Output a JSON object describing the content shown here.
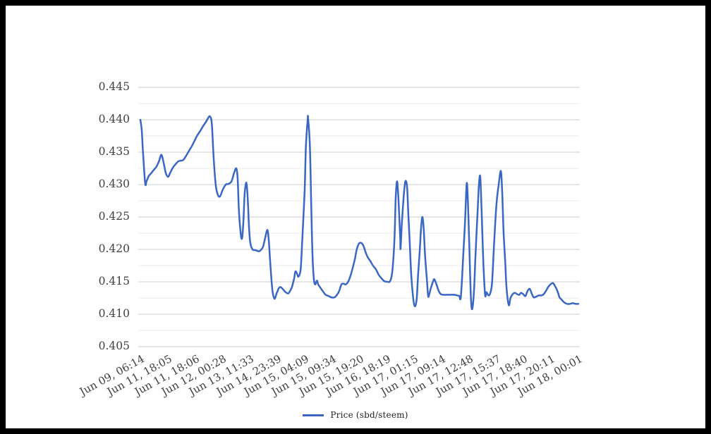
{
  "frame": {
    "border_color": "#000000",
    "background": "#ffffff"
  },
  "legend": {
    "label": "Price (sbd/steem)"
  },
  "chart_data": {
    "type": "line",
    "title": "",
    "xlabel": "",
    "ylabel": "",
    "grid": "horizontal-only",
    "legend_position": "bottom-center",
    "colors": {
      "line": "#3a66c4",
      "major_grid": "#cccccc",
      "minor_grid": "#ebebeb",
      "axis_text": "#404040",
      "legend_text": "#1f1f1f"
    },
    "y_axis": {
      "min": 0.405,
      "max": 0.445,
      "major_step": 0.005,
      "minor_step": 0.0025,
      "tick_labels": [
        "0.445",
        "0.440",
        "0.435",
        "0.430",
        "0.425",
        "0.420",
        "0.415",
        "0.410",
        "0.405"
      ],
      "tick_values": [
        0.445,
        0.44,
        0.435,
        0.43,
        0.425,
        0.42,
        0.415,
        0.41,
        0.405
      ]
    },
    "x_axis": {
      "tick_labels": [
        "Jun 09, 06:14",
        "Jun 11, 18:05",
        "Jun 11, 18:06",
        "Jun 12, 00:28",
        "Jun 13, 11:33",
        "Jun 14, 23:39",
        "Jun 15, 04:09",
        "Jun 15, 09:34",
        "Jun 15, 19:20",
        "Jun 16, 18:19",
        "Jun 17, 01:15",
        "Jun 17, 09:14",
        "Jun 17, 12:48",
        "Jun 17, 15:37",
        "Jun 17, 18:40",
        "Jun 17, 20:11",
        "Jun 18, 00:01"
      ]
    },
    "series": [
      {
        "name": "Price (sbd/steem)",
        "color": "#3a66c4",
        "x_unit": "fraction-of-axis (0 = Jun 09 06:14, 1 = Jun 18 00:01)",
        "points": [
          [
            0.0,
            0.44
          ],
          [
            0.003,
            0.4385
          ],
          [
            0.006,
            0.435
          ],
          [
            0.011,
            0.4302
          ],
          [
            0.014,
            0.4305
          ],
          [
            0.019,
            0.4313
          ],
          [
            0.024,
            0.4317
          ],
          [
            0.031,
            0.4323
          ],
          [
            0.037,
            0.4328
          ],
          [
            0.043,
            0.4337
          ],
          [
            0.048,
            0.4346
          ],
          [
            0.053,
            0.4334
          ],
          [
            0.058,
            0.4318
          ],
          [
            0.063,
            0.4312
          ],
          [
            0.068,
            0.4318
          ],
          [
            0.074,
            0.4326
          ],
          [
            0.081,
            0.4332
          ],
          [
            0.087,
            0.4336
          ],
          [
            0.093,
            0.4337
          ],
          [
            0.098,
            0.4338
          ],
          [
            0.105,
            0.4345
          ],
          [
            0.111,
            0.4352
          ],
          [
            0.118,
            0.436
          ],
          [
            0.124,
            0.4368
          ],
          [
            0.13,
            0.4376
          ],
          [
            0.137,
            0.4383
          ],
          [
            0.143,
            0.439
          ],
          [
            0.15,
            0.4397
          ],
          [
            0.156,
            0.4404
          ],
          [
            0.159,
            0.4405
          ],
          [
            0.163,
            0.4395
          ],
          [
            0.167,
            0.4345
          ],
          [
            0.172,
            0.43
          ],
          [
            0.177,
            0.4284
          ],
          [
            0.182,
            0.4282
          ],
          [
            0.188,
            0.4292
          ],
          [
            0.195,
            0.43
          ],
          [
            0.201,
            0.4301
          ],
          [
            0.208,
            0.4305
          ],
          [
            0.214,
            0.4318
          ],
          [
            0.219,
            0.4325
          ],
          [
            0.222,
            0.431
          ],
          [
            0.225,
            0.426
          ],
          [
            0.229,
            0.4225
          ],
          [
            0.232,
            0.4217
          ],
          [
            0.235,
            0.424
          ],
          [
            0.238,
            0.4285
          ],
          [
            0.242,
            0.4303
          ],
          [
            0.245,
            0.428
          ],
          [
            0.248,
            0.4235
          ],
          [
            0.251,
            0.421
          ],
          [
            0.256,
            0.42
          ],
          [
            0.261,
            0.4199
          ],
          [
            0.266,
            0.4198
          ],
          [
            0.271,
            0.4197
          ],
          [
            0.275,
            0.4199
          ],
          [
            0.28,
            0.4204
          ],
          [
            0.285,
            0.4218
          ],
          [
            0.29,
            0.423
          ],
          [
            0.293,
            0.4215
          ],
          [
            0.296,
            0.4185
          ],
          [
            0.301,
            0.414
          ],
          [
            0.306,
            0.4124
          ],
          [
            0.311,
            0.4132
          ],
          [
            0.316,
            0.414
          ],
          [
            0.32,
            0.4142
          ],
          [
            0.325,
            0.4139
          ],
          [
            0.33,
            0.4135
          ],
          [
            0.337,
            0.4132
          ],
          [
            0.341,
            0.4135
          ],
          [
            0.346,
            0.4142
          ],
          [
            0.351,
            0.4155
          ],
          [
            0.354,
            0.4166
          ],
          [
            0.358,
            0.4162
          ],
          [
            0.361,
            0.4158
          ],
          [
            0.366,
            0.417
          ],
          [
            0.37,
            0.422
          ],
          [
            0.375,
            0.429
          ],
          [
            0.378,
            0.436
          ],
          [
            0.382,
            0.44
          ],
          [
            0.383,
            0.4402
          ],
          [
            0.387,
            0.436
          ],
          [
            0.39,
            0.427
          ],
          [
            0.393,
            0.419
          ],
          [
            0.396,
            0.4155
          ],
          [
            0.399,
            0.4146
          ],
          [
            0.403,
            0.4152
          ],
          [
            0.406,
            0.4146
          ],
          [
            0.411,
            0.4141
          ],
          [
            0.417,
            0.4135
          ],
          [
            0.423,
            0.413
          ],
          [
            0.43,
            0.4128
          ],
          [
            0.436,
            0.4126
          ],
          [
            0.443,
            0.4126
          ],
          [
            0.449,
            0.413
          ],
          [
            0.454,
            0.4136
          ],
          [
            0.459,
            0.4146
          ],
          [
            0.464,
            0.4147
          ],
          [
            0.469,
            0.4146
          ],
          [
            0.475,
            0.4151
          ],
          [
            0.48,
            0.416
          ],
          [
            0.485,
            0.4172
          ],
          [
            0.49,
            0.4186
          ],
          [
            0.494,
            0.42
          ],
          [
            0.499,
            0.4209
          ],
          [
            0.504,
            0.421
          ],
          [
            0.509,
            0.4206
          ],
          [
            0.514,
            0.4196
          ],
          [
            0.519,
            0.4188
          ],
          [
            0.525,
            0.4182
          ],
          [
            0.531,
            0.4175
          ],
          [
            0.538,
            0.4169
          ],
          [
            0.544,
            0.4161
          ],
          [
            0.551,
            0.4155
          ],
          [
            0.557,
            0.4151
          ],
          [
            0.564,
            0.415
          ],
          [
            0.57,
            0.4151
          ],
          [
            0.575,
            0.4165
          ],
          [
            0.58,
            0.4215
          ],
          [
            0.583,
            0.428
          ],
          [
            0.586,
            0.4305
          ],
          [
            0.589,
            0.428
          ],
          [
            0.593,
            0.422
          ],
          [
            0.594,
            0.4201
          ],
          [
            0.597,
            0.424
          ],
          [
            0.601,
            0.428
          ],
          [
            0.605,
            0.4305
          ],
          [
            0.609,
            0.4295
          ],
          [
            0.612,
            0.425
          ],
          [
            0.615,
            0.421
          ],
          [
            0.618,
            0.4165
          ],
          [
            0.622,
            0.413
          ],
          [
            0.625,
            0.4115
          ],
          [
            0.628,
            0.4113
          ],
          [
            0.631,
            0.4125
          ],
          [
            0.634,
            0.416
          ],
          [
            0.638,
            0.42
          ],
          [
            0.641,
            0.4235
          ],
          [
            0.644,
            0.425
          ],
          [
            0.647,
            0.423
          ],
          [
            0.65,
            0.419
          ],
          [
            0.654,
            0.4155
          ],
          [
            0.657,
            0.4128
          ],
          [
            0.66,
            0.4132
          ],
          [
            0.663,
            0.414
          ],
          [
            0.668,
            0.415
          ],
          [
            0.671,
            0.4154
          ],
          [
            0.676,
            0.4146
          ],
          [
            0.681,
            0.4136
          ],
          [
            0.686,
            0.4131
          ],
          [
            0.692,
            0.413
          ],
          [
            0.7,
            0.413
          ],
          [
            0.709,
            0.413
          ],
          [
            0.717,
            0.413
          ],
          [
            0.723,
            0.4129
          ],
          [
            0.728,
            0.4128
          ],
          [
            0.731,
            0.4124
          ],
          [
            0.734,
            0.415
          ],
          [
            0.737,
            0.419
          ],
          [
            0.741,
            0.424
          ],
          [
            0.744,
            0.429
          ],
          [
            0.746,
            0.43
          ],
          [
            0.749,
            0.425
          ],
          [
            0.752,
            0.418
          ],
          [
            0.755,
            0.412
          ],
          [
            0.758,
            0.4109
          ],
          [
            0.762,
            0.414
          ],
          [
            0.765,
            0.419
          ],
          [
            0.77,
            0.426
          ],
          [
            0.773,
            0.43
          ],
          [
            0.776,
            0.4312
          ],
          [
            0.779,
            0.426
          ],
          [
            0.783,
            0.418
          ],
          [
            0.787,
            0.413
          ],
          [
            0.79,
            0.4134
          ],
          [
            0.795,
            0.4129
          ],
          [
            0.799,
            0.4133
          ],
          [
            0.803,
            0.415
          ],
          [
            0.808,
            0.4215
          ],
          [
            0.813,
            0.427
          ],
          [
            0.818,
            0.43
          ],
          [
            0.823,
            0.4321
          ],
          [
            0.826,
            0.429
          ],
          [
            0.829,
            0.423
          ],
          [
            0.833,
            0.418
          ],
          [
            0.836,
            0.414
          ],
          [
            0.841,
            0.4114
          ],
          [
            0.845,
            0.4125
          ],
          [
            0.85,
            0.4131
          ],
          [
            0.855,
            0.4133
          ],
          [
            0.86,
            0.4131
          ],
          [
            0.865,
            0.413
          ],
          [
            0.869,
            0.4133
          ],
          [
            0.874,
            0.4131
          ],
          [
            0.879,
            0.4128
          ],
          [
            0.884,
            0.4136
          ],
          [
            0.889,
            0.4139
          ],
          [
            0.894,
            0.4131
          ],
          [
            0.898,
            0.4126
          ],
          [
            0.903,
            0.4127
          ],
          [
            0.91,
            0.4129
          ],
          [
            0.916,
            0.4129
          ],
          [
            0.921,
            0.4131
          ],
          [
            0.926,
            0.4136
          ],
          [
            0.931,
            0.4142
          ],
          [
            0.936,
            0.4146
          ],
          [
            0.942,
            0.4148
          ],
          [
            0.947,
            0.4143
          ],
          [
            0.952,
            0.4136
          ],
          [
            0.957,
            0.4126
          ],
          [
            0.961,
            0.4123
          ],
          [
            0.968,
            0.4118
          ],
          [
            0.974,
            0.4116
          ],
          [
            0.981,
            0.4116
          ],
          [
            0.987,
            0.4117
          ],
          [
            0.994,
            0.4116
          ],
          [
            1.0,
            0.4116
          ]
        ]
      }
    ]
  }
}
